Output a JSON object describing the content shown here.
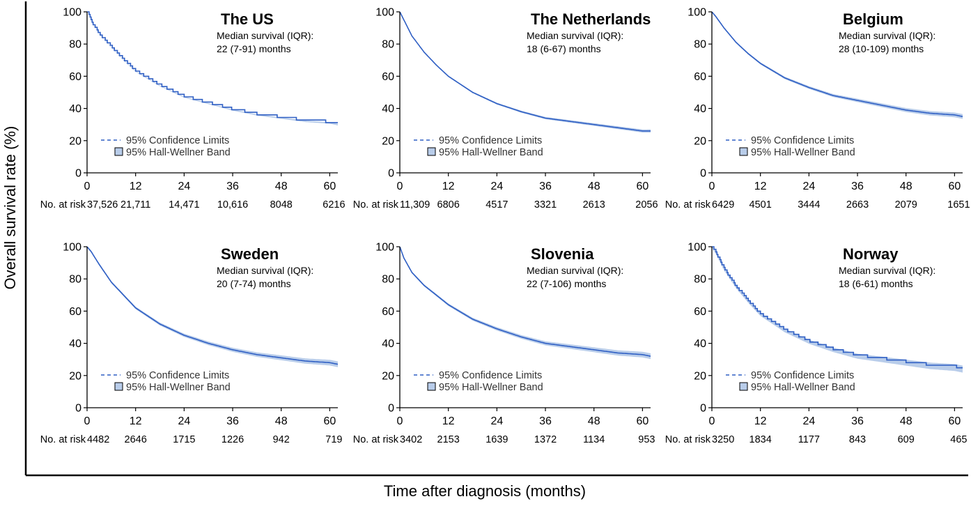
{
  "figure": {
    "ylabel": "Overall survival rate (%)",
    "xlabel": "Time after diagnosis (months)",
    "risk_label": "No. at risk",
    "legend": {
      "ci": "95% Confidence Limits",
      "band": "95% Hall-Wellner Band"
    },
    "colors": {
      "line": "#2f5fc4",
      "band": "#b9cdea",
      "axis": "#000000"
    }
  },
  "chart_data": [
    {
      "type": "line",
      "title": "The US",
      "annotation": [
        "Median survival (IQR):",
        "22 (7-91) months"
      ],
      "x": [
        0,
        1,
        3,
        6,
        9,
        12,
        18,
        24,
        30,
        36,
        42,
        48,
        54,
        60,
        62
      ],
      "y": [
        100,
        94,
        86,
        78,
        70,
        63,
        54,
        47,
        43,
        39,
        36,
        34,
        32,
        31,
        30
      ],
      "step": true,
      "band": 0.5,
      "xlim": [
        0,
        62
      ],
      "ylim": [
        0,
        100
      ],
      "xticks": [
        0,
        12,
        24,
        36,
        48,
        60
      ],
      "yticks": [
        0,
        20,
        40,
        60,
        80,
        100
      ],
      "risk": [
        "37,526",
        "21,711",
        "14,471",
        "10,616",
        "8048",
        "6216"
      ]
    },
    {
      "type": "line",
      "title": "The Netherlands",
      "annotation": [
        "Median survival (IQR):",
        "18 (6-67) months"
      ],
      "x": [
        0,
        1,
        3,
        6,
        9,
        12,
        18,
        24,
        30,
        36,
        42,
        48,
        54,
        60,
        62
      ],
      "y": [
        100,
        95,
        85,
        75,
        67,
        60,
        50,
        43,
        38,
        34,
        32,
        30,
        28,
        26,
        26
      ],
      "step": false,
      "band": 1,
      "xlim": [
        0,
        62
      ],
      "ylim": [
        0,
        100
      ],
      "xticks": [
        0,
        12,
        24,
        36,
        48,
        60
      ],
      "yticks": [
        0,
        20,
        40,
        60,
        80,
        100
      ],
      "risk": [
        "11,309",
        "6806",
        "4517",
        "3321",
        "2613",
        "2056"
      ]
    },
    {
      "type": "line",
      "title": "Belgium",
      "annotation": [
        "Median survival (IQR):",
        "28 (10-109) months"
      ],
      "x": [
        0,
        1,
        3,
        6,
        9,
        12,
        18,
        24,
        30,
        36,
        42,
        48,
        54,
        60,
        62
      ],
      "y": [
        100,
        97,
        90,
        81,
        74,
        68,
        59,
        53,
        48,
        45,
        42,
        39,
        37,
        36,
        35
      ],
      "step": false,
      "band": 1.5,
      "xlim": [
        0,
        62
      ],
      "ylim": [
        0,
        100
      ],
      "xticks": [
        0,
        12,
        24,
        36,
        48,
        60
      ],
      "yticks": [
        0,
        20,
        40,
        60,
        80,
        100
      ],
      "risk": [
        "6429",
        "4501",
        "3444",
        "2663",
        "2079",
        "1651"
      ]
    },
    {
      "type": "line",
      "title": "Sweden",
      "annotation": [
        "Median survival (IQR):",
        "20 (7-74) months"
      ],
      "x": [
        0,
        1,
        3,
        6,
        9,
        12,
        18,
        24,
        30,
        36,
        42,
        48,
        54,
        60,
        62
      ],
      "y": [
        100,
        97,
        89,
        78,
        70,
        62,
        52,
        45,
        40,
        36,
        33,
        31,
        29,
        28,
        27
      ],
      "step": false,
      "band": 1.8,
      "xlim": [
        0,
        62
      ],
      "ylim": [
        0,
        100
      ],
      "xticks": [
        0,
        12,
        24,
        36,
        48,
        60
      ],
      "yticks": [
        0,
        20,
        40,
        60,
        80,
        100
      ],
      "risk": [
        "4482",
        "2646",
        "1715",
        "1226",
        "942",
        "719"
      ]
    },
    {
      "type": "line",
      "title": "Slovenia",
      "annotation": [
        "Median survival (IQR):",
        "22 (7-106) months"
      ],
      "x": [
        0,
        1,
        3,
        6,
        9,
        12,
        18,
        24,
        30,
        36,
        42,
        48,
        54,
        60,
        62
      ],
      "y": [
        100,
        93,
        84,
        76,
        70,
        64,
        55,
        49,
        44,
        40,
        38,
        36,
        34,
        33,
        32
      ],
      "step": false,
      "band": 1.8,
      "xlim": [
        0,
        62
      ],
      "ylim": [
        0,
        100
      ],
      "xticks": [
        0,
        12,
        24,
        36,
        48,
        60
      ],
      "yticks": [
        0,
        20,
        40,
        60,
        80,
        100
      ],
      "risk": [
        "3402",
        "2153",
        "1639",
        "1372",
        "1134",
        "953"
      ]
    },
    {
      "type": "line",
      "title": "Norway",
      "annotation": [
        "Median survival (IQR):",
        "18 (6-61) months"
      ],
      "x": [
        0,
        1,
        3,
        6,
        9,
        12,
        18,
        24,
        30,
        36,
        42,
        48,
        54,
        60,
        62
      ],
      "y": [
        100,
        96,
        86,
        75,
        66,
        58,
        48,
        41,
        36,
        32,
        30,
        28,
        26,
        25,
        24
      ],
      "step": true,
      "band": 2.2,
      "xlim": [
        0,
        62
      ],
      "ylim": [
        0,
        100
      ],
      "xticks": [
        0,
        12,
        24,
        36,
        48,
        60
      ],
      "yticks": [
        0,
        20,
        40,
        60,
        80,
        100
      ],
      "risk": [
        "3250",
        "1834",
        "1177",
        "843",
        "609",
        "465"
      ]
    }
  ]
}
